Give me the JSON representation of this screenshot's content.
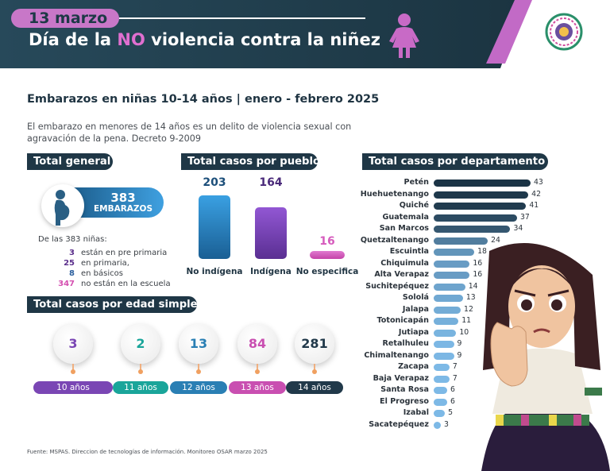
{
  "header": {
    "date": "13 marzo",
    "title_pre": "Día de la ",
    "title_no": "NO",
    "title_post": " violencia contra la niñez",
    "bg_color": "#1e3a48",
    "accent_color": "#c877c8"
  },
  "main_title": "Embarazos en niñas 10-14 años | enero - febrero 2025",
  "subtitle": "El embarazo en menores de 14 años es un delito de violencia sexual con agravación de la pena.  Decreto 9-2009",
  "total_general": {
    "section_title": "Total general",
    "value": "383",
    "label": "EMBARAZOS",
    "desc": "De las 383 niñas:",
    "breakdown": [
      {
        "n": "3",
        "text": "están en pre primaria",
        "color": "#5b2f8c"
      },
      {
        "n": "25",
        "text": "en primaria,",
        "color": "#5b2f8c"
      },
      {
        "n": "8",
        "text": "en básicos",
        "color": "#2b5f9e"
      },
      {
        "n": "347",
        "text": "no están en la escuela",
        "color": "#d44fb0"
      }
    ]
  },
  "chart_data": [
    {
      "type": "bar",
      "title": "Total casos por pueblo",
      "categories": [
        "No indígena",
        "Indígena",
        "No especifica"
      ],
      "values": [
        203,
        164,
        16
      ],
      "colors": [
        "#2e86c8",
        "#7a46b4",
        "#d65bbd"
      ]
    },
    {
      "type": "bar",
      "title": "Total casos por edad simple",
      "categories": [
        "10 años",
        "11 años",
        "12 años",
        "13 años",
        "14 años"
      ],
      "values": [
        3,
        2,
        13,
        84,
        281
      ],
      "colors": [
        "#7a46b4",
        "#1aa59a",
        "#2a7fb4",
        "#c94fb1",
        "#21394a"
      ]
    },
    {
      "type": "bar",
      "orientation": "horizontal",
      "title": "Total casos por departamento",
      "categories": [
        "Petén",
        "Huehuetenango",
        "Quiché",
        "Guatemala",
        "San Marcos",
        "Quetzaltenango",
        "Escuintla",
        "Chiquimula",
        "Alta Verapaz",
        "Suchitepéquez",
        "Sololá",
        "Jalapa",
        "Totonicapán",
        "Jutiapa",
        "Retalhuleu",
        "Chimaltenango",
        "Zacapa",
        "Baja Verapaz",
        "Santa Rosa",
        "El Progreso",
        "Izabal",
        "Sacatepéquez"
      ],
      "values": [
        43,
        42,
        41,
        37,
        34,
        24,
        18,
        16,
        16,
        14,
        13,
        12,
        11,
        10,
        9,
        9,
        7,
        7,
        6,
        6,
        5,
        3
      ]
    }
  ],
  "source": "Fuente: MSPAS. Direccion de tecnologías de información. Monitoreo OSAR marzo 2025"
}
